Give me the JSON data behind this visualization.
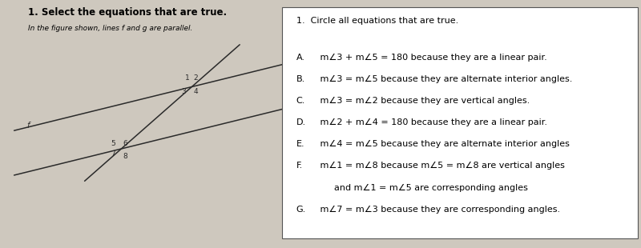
{
  "bg_color": "#cec8be",
  "left_panel": {
    "title": "1. Select the equations that are true.",
    "subtitle": "In the figure shown, lines f and g are parallel.",
    "line_label": "f"
  },
  "right_panel": {
    "header": "1.  Circle all equations that are true.",
    "items": [
      {
        "label": "A.",
        "text": " m∠3 + m∠5 = 180 because they are a linear pair."
      },
      {
        "label": "B.",
        "text": " m∠3 = m∠5 because they are alternate interior angles."
      },
      {
        "label": "C.",
        "text": " m∠3 = m∠2 because they are vertical angles."
      },
      {
        "label": "D.",
        "text": " m∠2 + m∠4 = 180 because they are a linear pair."
      },
      {
        "label": "E.",
        "text": " m∠4 = m∠5 because they are alternate interior angles"
      },
      {
        "label": "F.",
        "text": " m∠1 = m∠8 because m∠5 = m∠8 are vertical angles"
      },
      {
        "label": "",
        "text": "      and m∠1 = m∠5 are corresponding angles"
      },
      {
        "label": "G.",
        "text": " m∠7 = m∠3 because they are corresponding angles."
      }
    ]
  }
}
